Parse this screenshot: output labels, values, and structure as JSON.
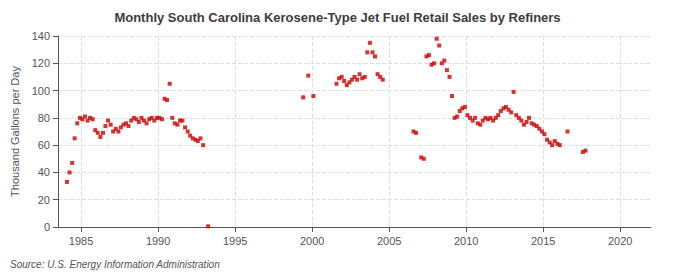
{
  "chart_data": {
    "type": "scatter",
    "title": "Monthly South Carolina Kerosene-Type Jet Fuel Retail Sales by Refiners",
    "ylabel": "Thousand Gallons per Day",
    "annotation": "Source: U.S. Energy Information Administration",
    "color": "#cc0000",
    "marker": "square",
    "grid": true,
    "xlim": [
      1983.5,
      2022
    ],
    "ylim": [
      0,
      140
    ],
    "xticks": [
      1985,
      1990,
      1995,
      2000,
      2005,
      2010,
      2015,
      2020
    ],
    "yticks": [
      0,
      20,
      40,
      60,
      80,
      100,
      120,
      140
    ],
    "x": [
      1984.08,
      1984.25,
      1984.42,
      1984.58,
      1984.75,
      1984.92,
      1985.08,
      1985.25,
      1985.42,
      1985.58,
      1985.75,
      1985.92,
      1986.08,
      1986.25,
      1986.42,
      1986.58,
      1986.75,
      1986.92,
      1987.08,
      1987.25,
      1987.42,
      1987.58,
      1987.75,
      1987.92,
      1988.08,
      1988.25,
      1988.42,
      1988.58,
      1988.75,
      1988.92,
      1989.08,
      1989.25,
      1989.42,
      1989.58,
      1989.75,
      1989.92,
      1990.08,
      1990.25,
      1990.42,
      1990.58,
      1990.75,
      1990.92,
      1991.08,
      1991.25,
      1991.42,
      1991.58,
      1991.75,
      1991.92,
      1992.08,
      1992.25,
      1992.42,
      1992.58,
      1992.75,
      1992.92,
      1993.25,
      1999.42,
      1999.75,
      2000.08,
      2001.58,
      2001.75,
      2001.92,
      2002.08,
      2002.25,
      2002.42,
      2002.58,
      2002.75,
      2002.92,
      2003.08,
      2003.25,
      2003.42,
      2003.58,
      2003.75,
      2003.92,
      2004.08,
      2004.25,
      2004.42,
      2004.58,
      2006.58,
      2006.75,
      2007.08,
      2007.25,
      2007.42,
      2007.58,
      2007.75,
      2007.92,
      2008.08,
      2008.25,
      2008.42,
      2008.58,
      2008.75,
      2008.92,
      2009.08,
      2009.25,
      2009.42,
      2009.58,
      2009.75,
      2009.92,
      2010.08,
      2010.25,
      2010.42,
      2010.58,
      2010.75,
      2010.92,
      2011.08,
      2011.25,
      2011.42,
      2011.58,
      2011.75,
      2011.92,
      2012.08,
      2012.25,
      2012.42,
      2012.58,
      2012.75,
      2012.92,
      2013.08,
      2013.25,
      2013.42,
      2013.58,
      2013.75,
      2013.92,
      2014.08,
      2014.25,
      2014.42,
      2014.58,
      2014.75,
      2014.92,
      2015.08,
      2015.25,
      2015.42,
      2015.58,
      2015.75,
      2015.92,
      2016.08,
      2016.58,
      2017.58,
      2017.75
    ],
    "values": [
      33,
      40,
      47,
      65,
      76,
      80,
      79,
      81,
      78,
      80,
      79,
      71,
      69,
      66,
      69,
      74,
      78,
      75,
      70,
      72,
      70,
      73,
      75,
      76,
      74,
      78,
      80,
      79,
      77,
      80,
      78,
      76,
      79,
      80,
      78,
      80,
      80,
      79,
      94,
      93,
      105,
      80,
      76,
      75,
      78,
      78,
      73,
      70,
      67,
      65,
      64,
      63,
      65,
      60,
      0.5,
      95,
      111,
      96,
      105,
      109,
      110,
      107,
      104,
      106,
      108,
      110,
      108,
      112,
      109,
      110,
      128,
      135,
      128,
      125,
      112,
      110,
      108,
      70,
      69,
      51,
      50,
      125,
      126,
      119,
      120,
      138,
      133,
      120,
      122,
      115,
      110,
      96,
      80,
      81,
      85,
      87,
      88,
      82,
      80,
      78,
      80,
      76,
      75,
      78,
      80,
      79,
      80,
      78,
      80,
      82,
      85,
      87,
      88,
      86,
      84,
      99,
      82,
      80,
      78,
      75,
      77,
      80,
      76,
      75,
      74,
      72,
      70,
      68,
      64,
      62,
      60,
      63,
      61,
      60,
      70,
      55,
      56
    ]
  }
}
